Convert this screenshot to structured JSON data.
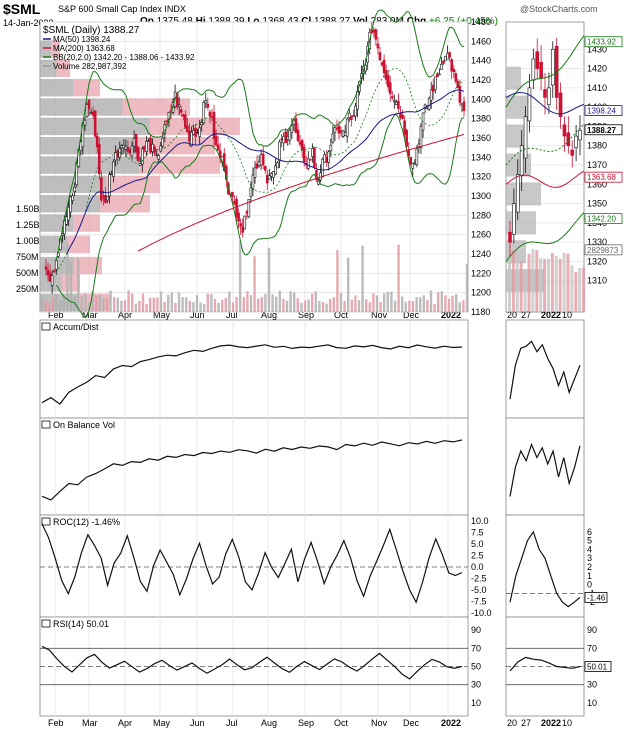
{
  "header": {
    "symbol": "$SML",
    "name": "S&P 600 Small Cap Index INDX",
    "date": "14-Jan-2022",
    "quote": {
      "open": "1375.48",
      "high": "1388.39",
      "low": "1368.43",
      "close": "1388.27",
      "volume": "283.0M",
      "change": "+6.25 (+0.45%)"
    },
    "labels": {
      "open": "Op",
      "high": "Hi",
      "low": "Lo",
      "close": "Cl",
      "volume": "Vol",
      "change": "Chg"
    },
    "watermark": "@StockCharts.com"
  },
  "colors": {
    "up": "#111111",
    "down": "#cc1133",
    "ma50": "#1a1a8c",
    "ma200": "#cc1133",
    "bb": "#1a7a1a",
    "volume": "#999999",
    "volbar_down": "#e39aa3",
    "grid": "#e4e4e4"
  },
  "chart_data": [
    {
      "type": "candlestick",
      "panel": "price",
      "legend": [
        "$SML (Daily) 1388.27",
        "MA(50) 1398.24",
        "MA(200) 1363.68",
        "BB(20,2.0) 1342.20 - 1388.06 - 1433.92",
        "Volume 282,987,392"
      ],
      "ylim": [
        1180,
        1480
      ],
      "yticks": [
        1180,
        1200,
        1220,
        1240,
        1260,
        1280,
        1300,
        1320,
        1340,
        1360,
        1380,
        1400,
        1420,
        1440,
        1460,
        1480
      ],
      "volume_ticks": [
        "250M",
        "500M",
        "750M",
        "1.00B",
        "1.25B",
        "1.50B"
      ],
      "xticks": [
        "Feb",
        "Mar",
        "Apr",
        "May",
        "Jun",
        "Jul",
        "Aug",
        "Sep",
        "Oct",
        "Nov",
        "Dec",
        "2022"
      ],
      "close_path": [
        1230,
        1215,
        1230,
        1255,
        1270,
        1290,
        1300,
        1345,
        1370,
        1395,
        1385,
        1360,
        1300,
        1290,
        1325,
        1340,
        1350,
        1360,
        1340,
        1365,
        1335,
        1345,
        1355,
        1350,
        1335,
        1355,
        1370,
        1385,
        1405,
        1390,
        1380,
        1360,
        1370,
        1365,
        1385,
        1400,
        1380,
        1350,
        1340,
        1330,
        1300,
        1290,
        1280,
        1262,
        1300,
        1320,
        1335,
        1345,
        1320,
        1320,
        1325,
        1355,
        1360,
        1370,
        1375,
        1350,
        1340,
        1335,
        1345,
        1315,
        1330,
        1340,
        1355,
        1365,
        1370,
        1362,
        1385,
        1378,
        1410,
        1430,
        1450,
        1476,
        1460,
        1440,
        1425,
        1410,
        1400,
        1390,
        1370,
        1345,
        1330,
        1355,
        1380,
        1395,
        1410,
        1420,
        1435,
        1450,
        1440,
        1420,
        1400,
        1388
      ],
      "last": {
        "close": 1388.27,
        "ma50": 1398.24,
        "ma200": 1363.68,
        "bb_lower": 1342.2,
        "bb_mid": 1388.06,
        "bb_upper": 1433.92
      }
    },
    {
      "type": "line",
      "panel": "indicator",
      "legend": "Accum/Dist",
      "values": [
        5,
        12,
        3,
        20,
        28,
        35,
        45,
        42,
        55,
        60,
        58,
        65,
        68,
        72,
        75,
        74,
        78,
        82,
        80,
        85,
        88,
        90,
        87,
        86,
        88,
        90,
        86,
        88,
        85,
        87,
        86,
        88,
        90,
        86,
        85,
        88,
        87,
        89,
        86,
        84,
        88,
        86,
        90,
        87,
        85,
        88,
        86,
        87
      ]
    },
    {
      "type": "line",
      "panel": "indicator",
      "legend": "On Balance Vol",
      "values": [
        10,
        5,
        18,
        30,
        28,
        40,
        45,
        52,
        60,
        58,
        64,
        62,
        68,
        66,
        72,
        70,
        75,
        73,
        78,
        76,
        80,
        78,
        82,
        80,
        77,
        83,
        80,
        85,
        82,
        86,
        84,
        88,
        86,
        82,
        90,
        88,
        92,
        89,
        94,
        91,
        88,
        93,
        91,
        95,
        92,
        96,
        94,
        97
      ]
    },
    {
      "type": "line",
      "panel": "indicator",
      "legend": "ROC(12) -1.46%",
      "ylim": [
        -10,
        10
      ],
      "yticks": [
        "10.0",
        "7.5",
        "5.0",
        "2.5",
        "0.0",
        "-2.5",
        "-5.0",
        "-7.5",
        "-10.0"
      ],
      "values": [
        9,
        6,
        2,
        -3,
        -6,
        -2,
        3,
        7,
        5,
        2,
        -4,
        1,
        3,
        7,
        2,
        -3,
        -5,
        0,
        4,
        1,
        -2,
        -6,
        -3,
        2,
        5,
        0,
        -4,
        -2,
        3,
        6,
        2,
        -3,
        -5,
        -1,
        3,
        0,
        -2,
        1,
        4,
        -3,
        2,
        5,
        1,
        -4,
        0,
        3,
        6,
        2,
        -3,
        -6,
        -2,
        1,
        5,
        8,
        4,
        -1,
        -5,
        -8,
        -3,
        2,
        6,
        3,
        -1,
        -2,
        -1.46
      ],
      "last": -1.46
    },
    {
      "type": "line",
      "panel": "indicator",
      "legend": "RSI(14) 50.01",
      "ylim": [
        0,
        100
      ],
      "yticks": [
        "90",
        "70",
        "50",
        "30",
        "10"
      ],
      "reference_lines": [
        70,
        50,
        30
      ],
      "values": [
        72,
        68,
        58,
        50,
        44,
        52,
        60,
        63,
        55,
        48,
        52,
        56,
        50,
        44,
        48,
        53,
        57,
        51,
        46,
        50,
        54,
        48,
        43,
        47,
        52,
        58,
        52,
        46,
        49,
        55,
        60,
        54,
        48,
        44,
        50,
        55,
        51,
        47,
        53,
        58,
        55,
        49,
        45,
        51,
        58,
        64,
        57,
        50,
        42,
        36,
        44,
        52,
        58,
        55,
        50,
        48,
        50.01
      ],
      "last": 50.01
    },
    {
      "type": "candlestick",
      "panel": "zoom",
      "ylim": [
        1300,
        1440
      ],
      "yticks": [
        1310,
        1320,
        1330,
        1340,
        1350,
        1360,
        1370,
        1380,
        1390,
        1400,
        1410,
        1420,
        1430
      ],
      "xticks": [
        "20",
        "27",
        "2022",
        "10"
      ],
      "price_tags": [
        "1433.92",
        "1398.24",
        "1388.27",
        "1363.68",
        "1342.20",
        "2829873"
      ],
      "close_path": [
        1330,
        1350,
        1365,
        1380,
        1395,
        1410,
        1425,
        1420,
        1415,
        1405,
        1410,
        1430,
        1405,
        1395,
        1385,
        1380,
        1375,
        1385,
        1388
      ],
      "indicator_tags": {
        "roc": "-1.46",
        "rsi": "50.01"
      },
      "roc_ticks": [
        "6",
        "5",
        "4",
        "3",
        "2",
        "1",
        "0",
        "-1",
        "-2"
      ],
      "rsi_ticks": [
        "90",
        "70",
        "50",
        "30",
        "10"
      ]
    }
  ]
}
